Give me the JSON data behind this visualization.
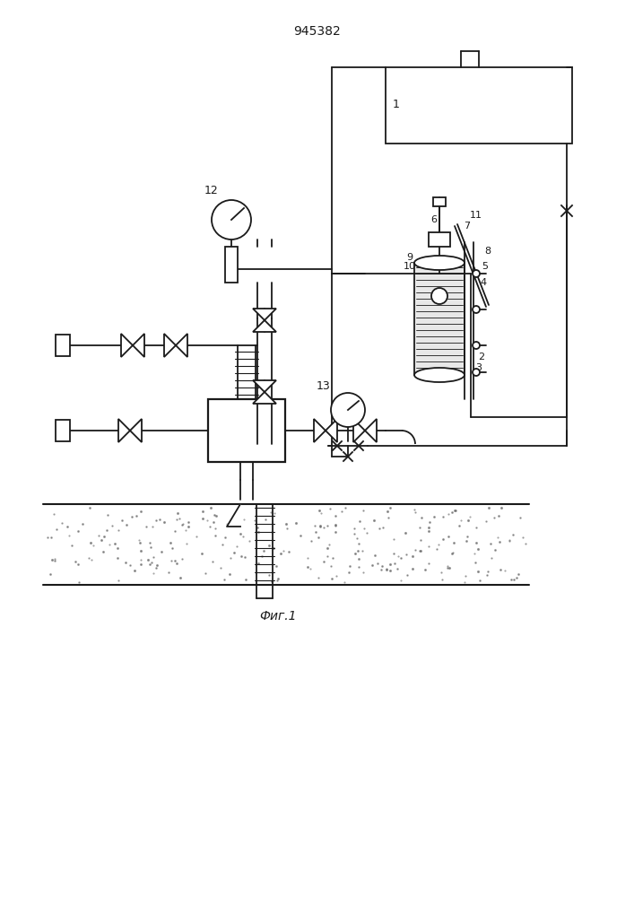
{
  "title": "945382",
  "caption": "Фиг.1",
  "bg_color": "#ffffff",
  "line_color": "#1a1a1a",
  "title_fontsize": 10,
  "caption_fontsize": 10
}
